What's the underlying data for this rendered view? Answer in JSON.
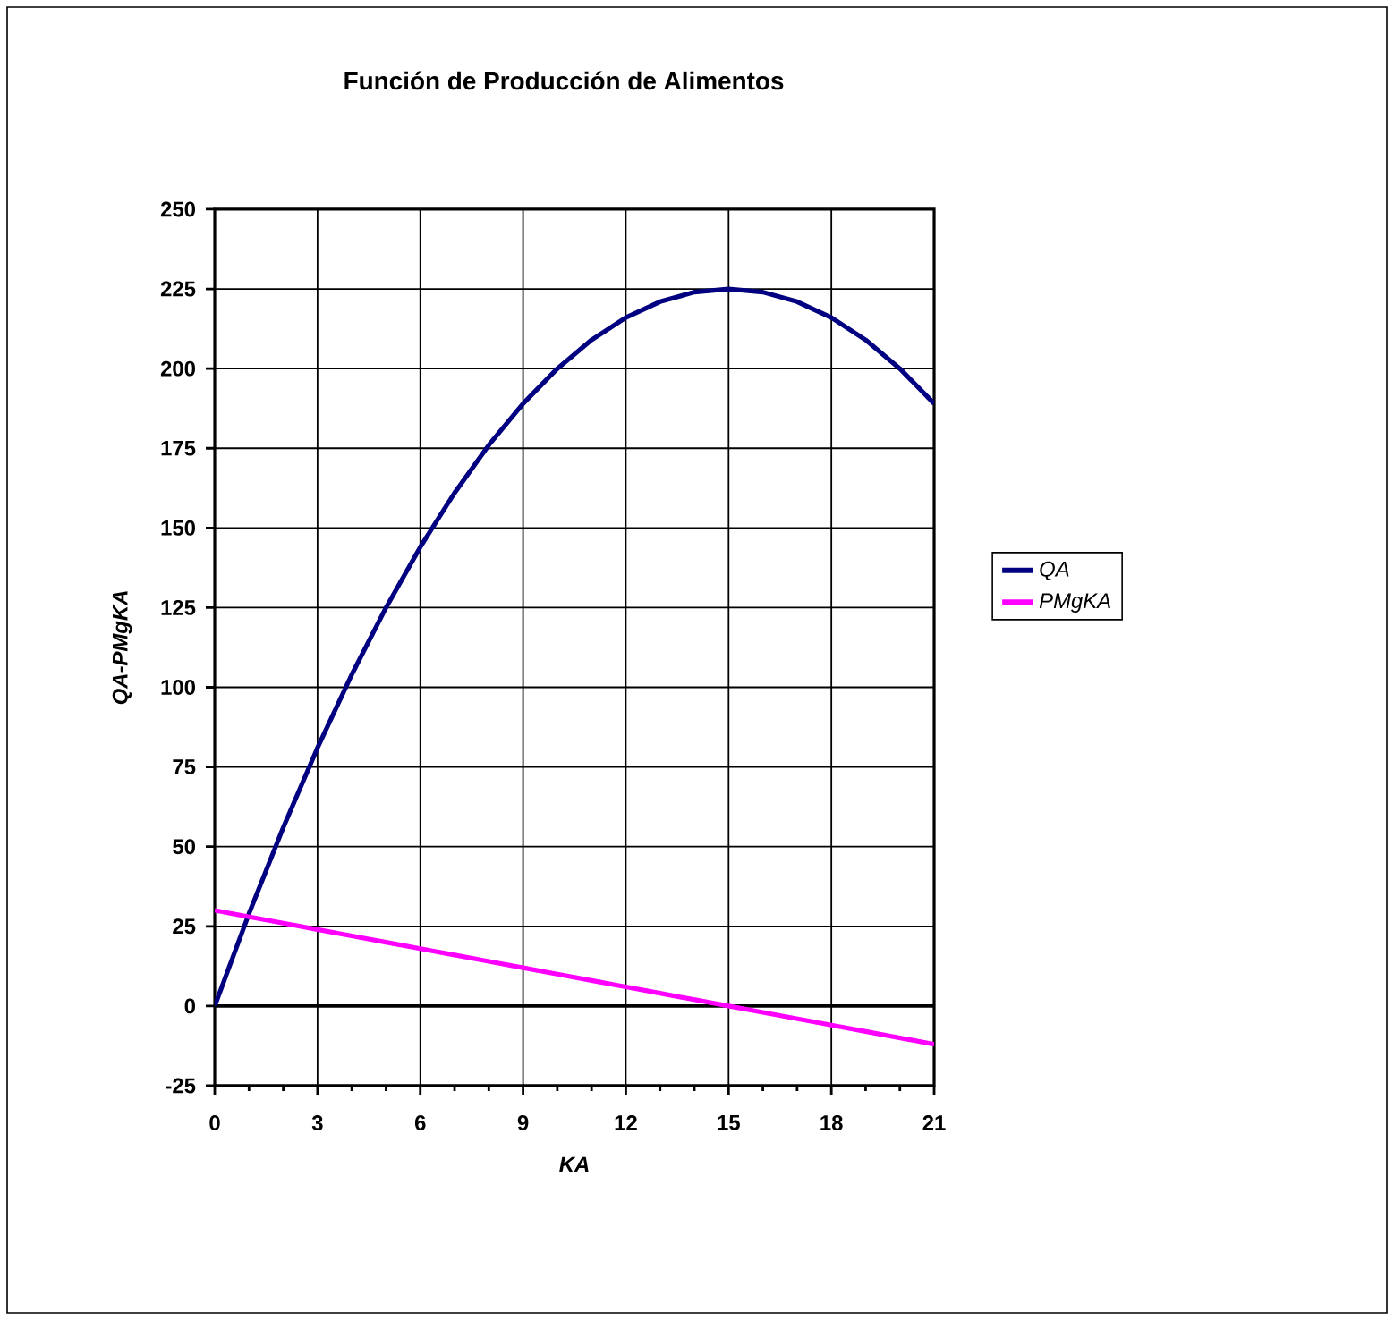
{
  "chart_data": {
    "type": "line",
    "title": "Función de Producción de Alimentos",
    "xlabel": "KA",
    "ylabel": "QA-PMgKA",
    "x": [
      0,
      1,
      2,
      3,
      4,
      5,
      6,
      7,
      8,
      9,
      10,
      11,
      12,
      13,
      14,
      15,
      16,
      17,
      18,
      19,
      20,
      21
    ],
    "series": [
      {
        "name": "QA",
        "color": "#000080",
        "values": [
          0,
          29,
          56,
          81,
          104,
          125,
          144,
          161,
          176,
          189,
          200,
          209,
          216,
          221,
          224,
          225,
          224,
          221,
          216,
          209,
          200,
          189
        ]
      },
      {
        "name": "PMgKA",
        "color": "#ff00ff",
        "values": [
          30,
          28,
          26,
          24,
          22,
          20,
          18,
          16,
          14,
          12,
          10,
          8,
          6,
          4,
          2,
          0,
          -2,
          -4,
          -6,
          -8,
          -10,
          -12
        ]
      }
    ],
    "xlim": [
      0,
      21
    ],
    "xticks": [
      0,
      3,
      6,
      9,
      12,
      15,
      18,
      21
    ],
    "ylim": [
      -25,
      250
    ],
    "yticks": [
      -25,
      0,
      25,
      50,
      75,
      100,
      125,
      150,
      175,
      200,
      225,
      250
    ],
    "grid": true,
    "legend": "right",
    "marker": "none",
    "line_style": "solid"
  }
}
